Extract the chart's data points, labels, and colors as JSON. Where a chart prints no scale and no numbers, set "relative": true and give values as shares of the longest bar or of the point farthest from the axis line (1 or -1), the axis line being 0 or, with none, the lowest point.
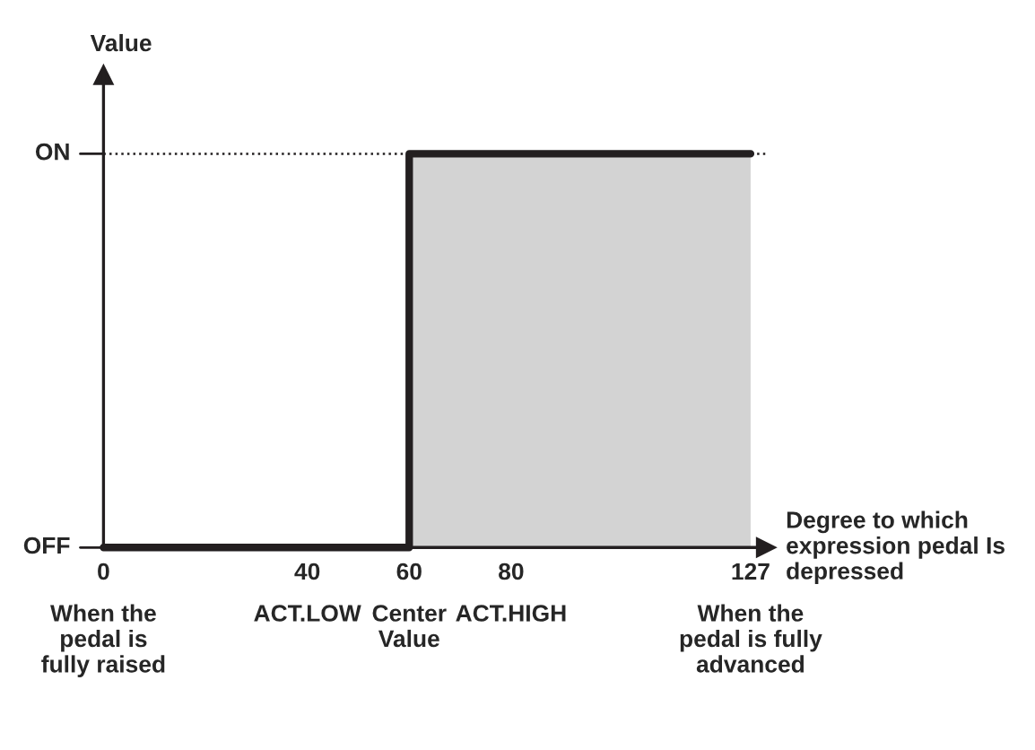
{
  "chart_data": {
    "type": "step",
    "relative": true,
    "xlabel": "Degree to which\nexpression pedal Is\ndepressed",
    "ylabel": "Value",
    "series": [
      {
        "type": "area",
        "color": "#d3d3d3",
        "x": [
          60,
          127
        ],
        "values": [
          1,
          1
        ]
      },
      {
        "color": "#231f20",
        "x": [
          0,
          60,
          127
        ],
        "values": [
          0,
          1,
          1
        ]
      }
    ],
    "xlim": [
      0,
      130
    ],
    "xticks": [
      0,
      40,
      60,
      80,
      127
    ],
    "ref_lines": [
      {
        "axis": "y",
        "value": 1,
        "line_style": "dotted",
        "color": "#231f20"
      }
    ],
    "annotations": [
      "OFF",
      "ON",
      "When the\npedal is\nfully raised",
      "ACT.LOW",
      "Center\nValue",
      "ACT.HIGH",
      "When the\npedal is fully\nadvanced"
    ],
    "grid": false,
    "legend": false
  }
}
